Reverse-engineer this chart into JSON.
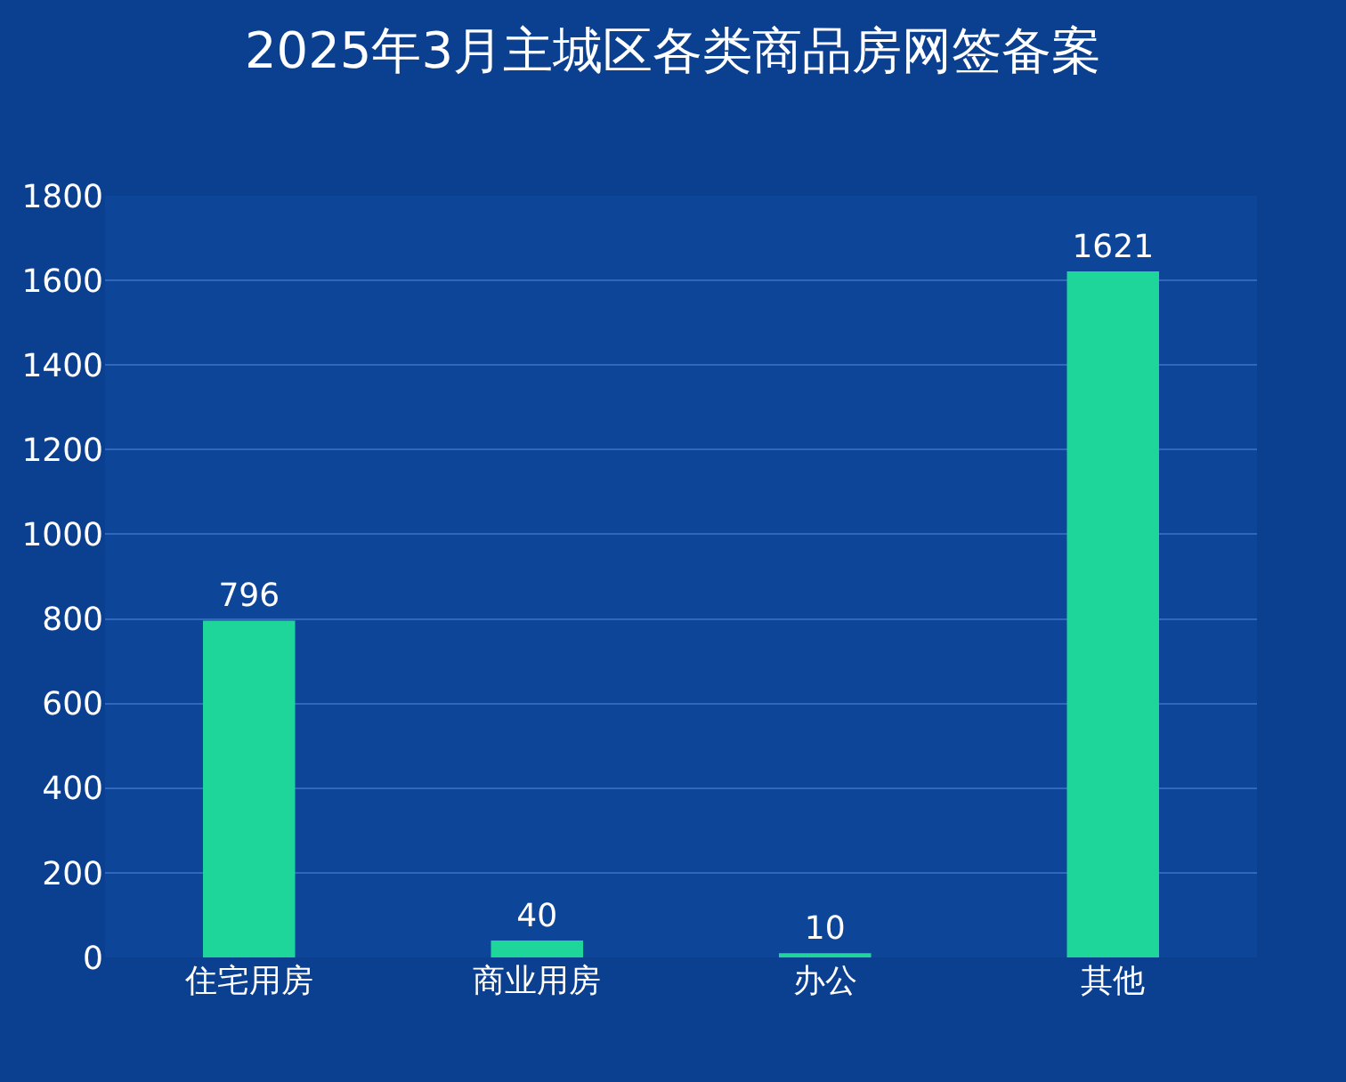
{
  "chart_data": {
    "type": "bar",
    "title": "2025年3月主城区各类商品房网签备案",
    "categories": [
      "住宅用房",
      "商业用房",
      "办公",
      "其他"
    ],
    "values": [
      796,
      40,
      10,
      1621
    ],
    "color": "#1ed69a",
    "ylim": [
      0,
      1800
    ],
    "yticks": [
      0,
      200,
      400,
      600,
      800,
      1000,
      1200,
      1400,
      1600,
      1800
    ],
    "grid": "y",
    "data_labels": true
  }
}
